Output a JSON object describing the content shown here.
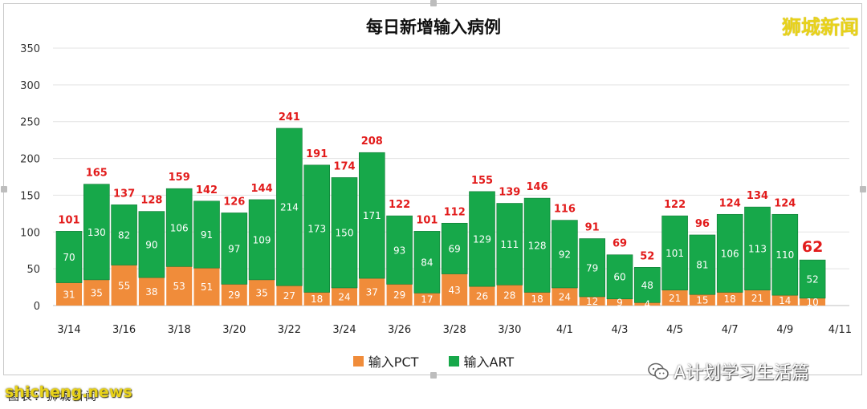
{
  "chart_data": {
    "type": "bar",
    "stacked": true,
    "title": "每日新增输入病例",
    "categories": [
      "3/14",
      "3/15",
      "3/16",
      "3/17",
      "3/18",
      "3/19",
      "3/20",
      "3/21",
      "3/22",
      "3/23",
      "3/24",
      "3/25",
      "3/26",
      "3/27",
      "3/28",
      "3/29",
      "3/30",
      "3/31",
      "4/1",
      "4/2",
      "4/3",
      "4/4",
      "4/5",
      "4/6",
      "4/7",
      "4/8",
      "4/9",
      "4/10"
    ],
    "xtick_labels": [
      "3/14",
      "3/16",
      "3/18",
      "3/20",
      "3/22",
      "3/24",
      "3/26",
      "3/28",
      "3/30",
      "4/1",
      "4/3",
      "4/5",
      "4/7",
      "4/9",
      "4/11"
    ],
    "yticks": [
      "0",
      "50",
      "100",
      "150",
      "200",
      "250",
      "300",
      "350"
    ],
    "ylim": [
      0,
      350
    ],
    "grid": true,
    "legend_position": "bottom",
    "series": [
      {
        "name": "输入PCT",
        "color": "#f08c3a",
        "values": [
          31,
          35,
          55,
          38,
          53,
          51,
          29,
          35,
          27,
          18,
          24,
          37,
          29,
          17,
          43,
          26,
          28,
          18,
          24,
          12,
          9,
          4,
          21,
          15,
          18,
          21,
          14,
          10
        ]
      },
      {
        "name": "输入ART",
        "color": "#17a84a",
        "values": [
          70,
          130,
          82,
          90,
          106,
          91,
          97,
          109,
          214,
          173,
          150,
          171,
          93,
          84,
          69,
          129,
          111,
          128,
          92,
          79,
          60,
          48,
          101,
          81,
          106,
          113,
          110,
          52
        ]
      }
    ],
    "totals": [
      101,
      165,
      137,
      128,
      159,
      142,
      126,
      144,
      241,
      191,
      174,
      208,
      122,
      101,
      112,
      155,
      139,
      146,
      116,
      91,
      69,
      52,
      122,
      96,
      124,
      134,
      124,
      62
    ],
    "highlight_last_total": true,
    "total_label_color": "#e21b1b"
  },
  "watermarks": {
    "top_right": "狮城新闻",
    "wechat": "A计划学习生活篇",
    "site": "shicheng.news",
    "footer": "图表：狮城新闻"
  }
}
